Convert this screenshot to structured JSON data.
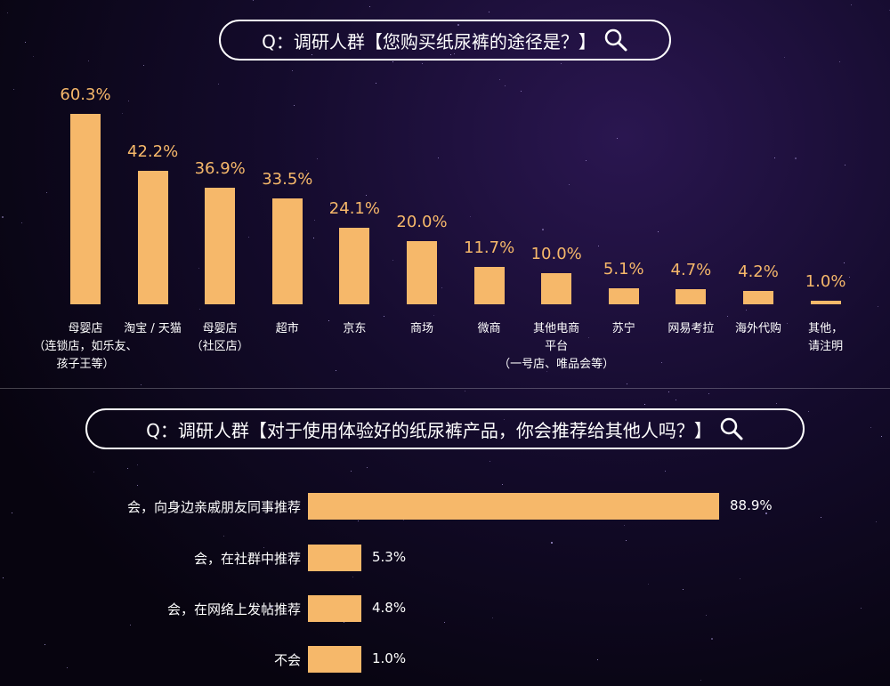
{
  "colors": {
    "bar": "#f6b86a",
    "text": "#ffffff"
  },
  "chart_data": [
    {
      "type": "bar",
      "title": "Q：调研人群【您购买纸尿裤的途径是？】",
      "categories": [
        "母婴店\n（连锁店，如乐友、\n孩子王等）",
        "淘宝 / 天猫",
        "母婴店\n（社区店）",
        "超市",
        "京东",
        "商场",
        "微商",
        "其他电商\n平台\n（一号店、唯品会等）",
        "苏宁",
        "网易考拉",
        "海外代购",
        "其他，\n请注明"
      ],
      "values": [
        60.3,
        42.2,
        36.9,
        33.5,
        24.1,
        20.0,
        11.7,
        10.0,
        5.1,
        4.7,
        4.2,
        1.0
      ],
      "value_labels": [
        "60.3%",
        "42.2%",
        "36.9%",
        "33.5%",
        "24.1%",
        "20.0%",
        "11.7%",
        "10.0%",
        "5.1%",
        "4.7%",
        "4.2%",
        "1.0%"
      ],
      "ylim": [
        0,
        100
      ]
    },
    {
      "type": "bar",
      "orientation": "horizontal",
      "title": "Q：调研人群【对于使用体验好的纸尿裤产品，你会推荐给其他人吗？】",
      "categories": [
        "会，向身边亲戚朋友同事推荐",
        "会，在社群中推荐",
        "会，在网络上发帖推荐",
        "不会"
      ],
      "values": [
        88.9,
        5.3,
        4.8,
        1.0
      ],
      "value_labels": [
        "88.9%",
        "5.3%",
        "4.8%",
        "1.0%"
      ],
      "xlim": [
        0,
        100
      ]
    }
  ],
  "icons": {
    "search": "search-icon"
  }
}
